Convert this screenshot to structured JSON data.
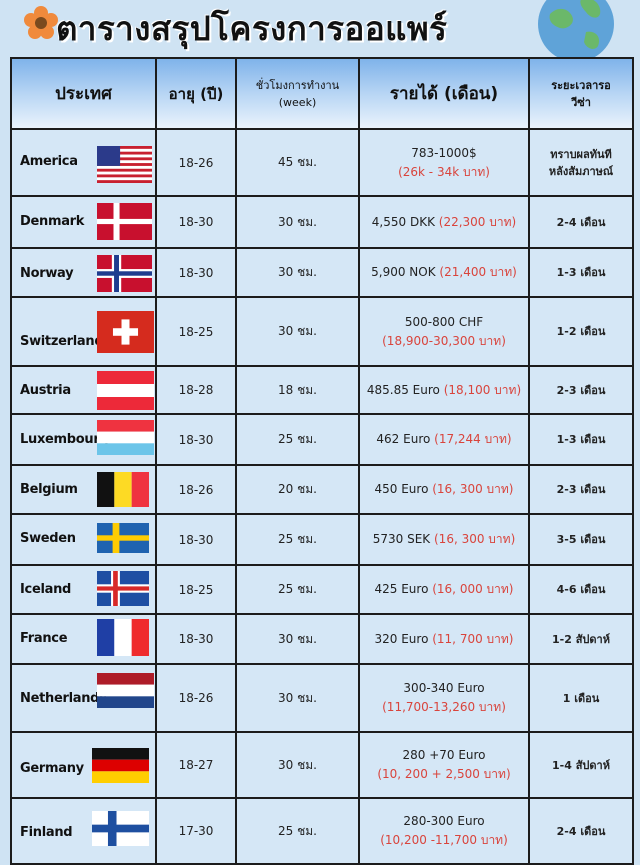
{
  "title": "ตารางสรุปโครงการออแพร์",
  "headers": {
    "country": "ประเทศ",
    "age": "อายุ (ปี)",
    "hours_line1": "ชั่วโมงการทำงาน",
    "hours_line2": "(week)",
    "income": "รายได้ (เดือน)",
    "visa_line1": "ระยะเวลารอ",
    "visa_line2": "วีซ่า"
  },
  "rows": [
    {
      "country": "America",
      "flag": "us-flag",
      "age": "18-26",
      "hours": "45 ชม.",
      "income": "783-1000$",
      "income_thb": "(26k - 34k บาท)",
      "visa": "ทราบผลทันที",
      "visa2": "หลังสัมภาษณ์"
    },
    {
      "country": "Denmark",
      "flag": "denmark-flag",
      "age": "18-30",
      "hours": "30 ชม.",
      "income": "4,550 DKK ",
      "income_thb": "(22,300 บาท)",
      "visa": "2-4 เดือน"
    },
    {
      "country": "Norway",
      "flag": "norway-flag",
      "age": "18-30",
      "hours": "30 ชม.",
      "income": "5,900 NOK ",
      "income_thb": "(21,400 บาท)",
      "visa": "1-3 เดือน"
    },
    {
      "country": "Switzerland",
      "flag": "switzerland-flag",
      "age": "18-25",
      "hours": "30 ชม.",
      "income": "500-800 CHF",
      "income_thb": "(18,900-30,300 บาท)",
      "visa": "1-2 เดือน"
    },
    {
      "country": "Austria",
      "flag": "austria-flag",
      "age": "18-28",
      "hours": "18 ชม.",
      "income": "485.85 Euro ",
      "income_thb": "(18,100 บาท)",
      "visa": "2-3 เดือน"
    },
    {
      "country": "Luxembourg",
      "flag": "luxembourg-flag",
      "age": "18-30",
      "hours": "25 ชม.",
      "income": "462 Euro ",
      "income_thb": "(17,244 บาท)",
      "visa": "1-3 เดือน"
    },
    {
      "country": "Belgium",
      "flag": "belgium-flag",
      "age": "18-26",
      "hours": "20 ชม.",
      "income": "450 Euro ",
      "income_thb": "(16, 300 บาท)",
      "visa": "2-3 เดือน"
    },
    {
      "country": "Sweden",
      "flag": "sweden-flag",
      "age": "18-30",
      "hours": "25 ชม.",
      "income": "5730 SEK ",
      "income_thb": "(16, 300 บาท)",
      "visa": "3-5 เดือน"
    },
    {
      "country": "Iceland",
      "flag": "iceland-flag",
      "age": "18-25",
      "hours": "25 ชม.",
      "income": "425 Euro ",
      "income_thb": "(16, 000 บาท)",
      "visa": "4-6 เดือน"
    },
    {
      "country": "France",
      "flag": "france-flag",
      "age": "18-30",
      "hours": "30 ชม.",
      "income": "320 Euro ",
      "income_thb": "(11, 700 บาท)",
      "visa": "1-2 สัปดาห์"
    },
    {
      "country": "Netherlands",
      "flag": "netherlands-flag",
      "age": "18-26",
      "hours": "30 ชม.",
      "income": "300-340 Euro",
      "income_thb": "(11,700-13,260 บาท)",
      "visa": "1 เดือน"
    },
    {
      "country": "Germany",
      "flag": "germany-flag",
      "age": "18-27",
      "hours": "30 ชม.",
      "income": "280 +70 Euro",
      "income_thb": "(10, 200 + 2,500 บาท)",
      "visa": "1-4 สัปดาห์"
    },
    {
      "country": "Finland",
      "flag": "finland-flag",
      "age": "17-30",
      "hours": "25 ชม.",
      "income": "280-300 Euro",
      "income_thb": "(10,200 -11,700 บาท)",
      "visa": "2-4 เดือน"
    }
  ]
}
